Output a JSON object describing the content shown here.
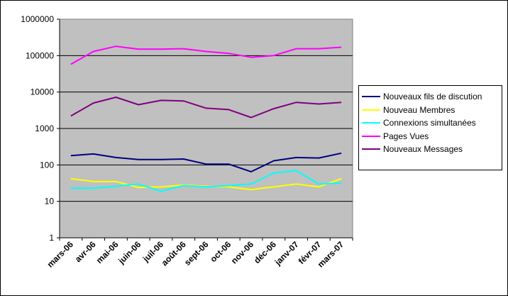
{
  "chart_data": {
    "type": "line",
    "y_scale": "log",
    "ylim": [
      1,
      1000000
    ],
    "grid": true,
    "legend_position": "right",
    "plot_background": "#c0c0c0",
    "y_ticks": [
      "1",
      "10",
      "100",
      "1000",
      "10000",
      "100000",
      "1000000"
    ],
    "categories": [
      "mars-06",
      "avr-06",
      "mai-06",
      "juin-06",
      "juil-06",
      "août-06",
      "sept-06",
      "oct-06",
      "nov-06",
      "déc-06",
      "janv-07",
      "févr-07",
      "mars-07"
    ],
    "series": [
      {
        "name": "Nouveaux fils de discution",
        "color": "#000080",
        "values": [
          180,
          200,
          160,
          140,
          140,
          145,
          105,
          105,
          65,
          130,
          160,
          155,
          210
        ]
      },
      {
        "name": "Nouveau Membres",
        "color": "#ffff00",
        "values": [
          42,
          35,
          35,
          24,
          25,
          28,
          26,
          25,
          21,
          25,
          30,
          25,
          42
        ]
      },
      {
        "name": "Connexions simultanées",
        "color": "#00ffff",
        "values": [
          23,
          23,
          26,
          30,
          19,
          27,
          25,
          27,
          30,
          60,
          70,
          30,
          32
        ]
      },
      {
        "name": "Pages Vues",
        "color": "#ff00ff",
        "values": [
          58000,
          130000,
          180000,
          150000,
          150000,
          155000,
          130000,
          115000,
          90000,
          100000,
          155000,
          155000,
          170000
        ]
      },
      {
        "name": "Nouveaux Messages",
        "color": "#800080",
        "values": [
          2200,
          5000,
          7200,
          4500,
          5900,
          5700,
          3600,
          3300,
          2000,
          3500,
          5200,
          4700,
          5200
        ]
      }
    ]
  }
}
